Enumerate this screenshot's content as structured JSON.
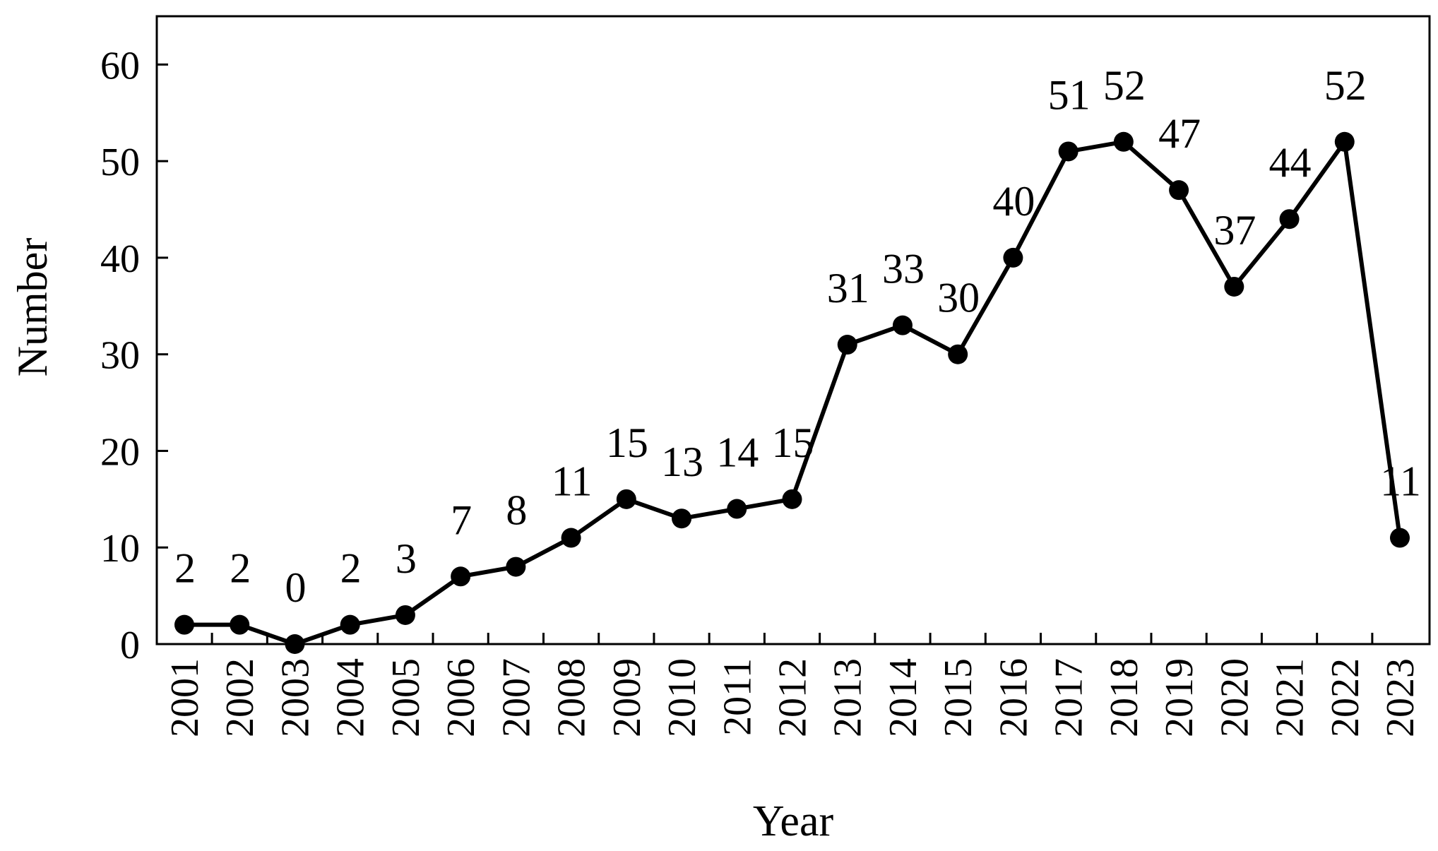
{
  "chart_data": {
    "type": "line",
    "title": "",
    "xlabel": "Year",
    "ylabel": "Number",
    "categories": [
      "2001",
      "2002",
      "2003",
      "2004",
      "2005",
      "2006",
      "2007",
      "2008",
      "2009",
      "2010",
      "2011",
      "2012",
      "2013",
      "2014",
      "2015",
      "2016",
      "2017",
      "2018",
      "2019",
      "2020",
      "2021",
      "2022",
      "2023"
    ],
    "values": [
      2,
      2,
      0,
      2,
      3,
      7,
      8,
      11,
      15,
      13,
      14,
      15,
      31,
      33,
      30,
      40,
      51,
      52,
      47,
      37,
      44,
      52,
      11
    ],
    "data_labels": [
      "2",
      "2",
      "0",
      "2",
      "3",
      "7",
      "8",
      "11",
      "15",
      "13",
      "14",
      "15",
      "31",
      "33",
      "30",
      "40",
      "51",
      "52",
      "47",
      "37",
      "44",
      "52",
      "11"
    ],
    "ylim": [
      0,
      65
    ],
    "yticks": [
      0,
      10,
      20,
      30,
      40,
      50,
      60
    ],
    "ytick_labels": [
      "0",
      "10",
      "20",
      "30",
      "40",
      "50",
      "60"
    ],
    "grid": false,
    "legend": "none",
    "line_color": "#000000",
    "marker": "filled-circle"
  }
}
